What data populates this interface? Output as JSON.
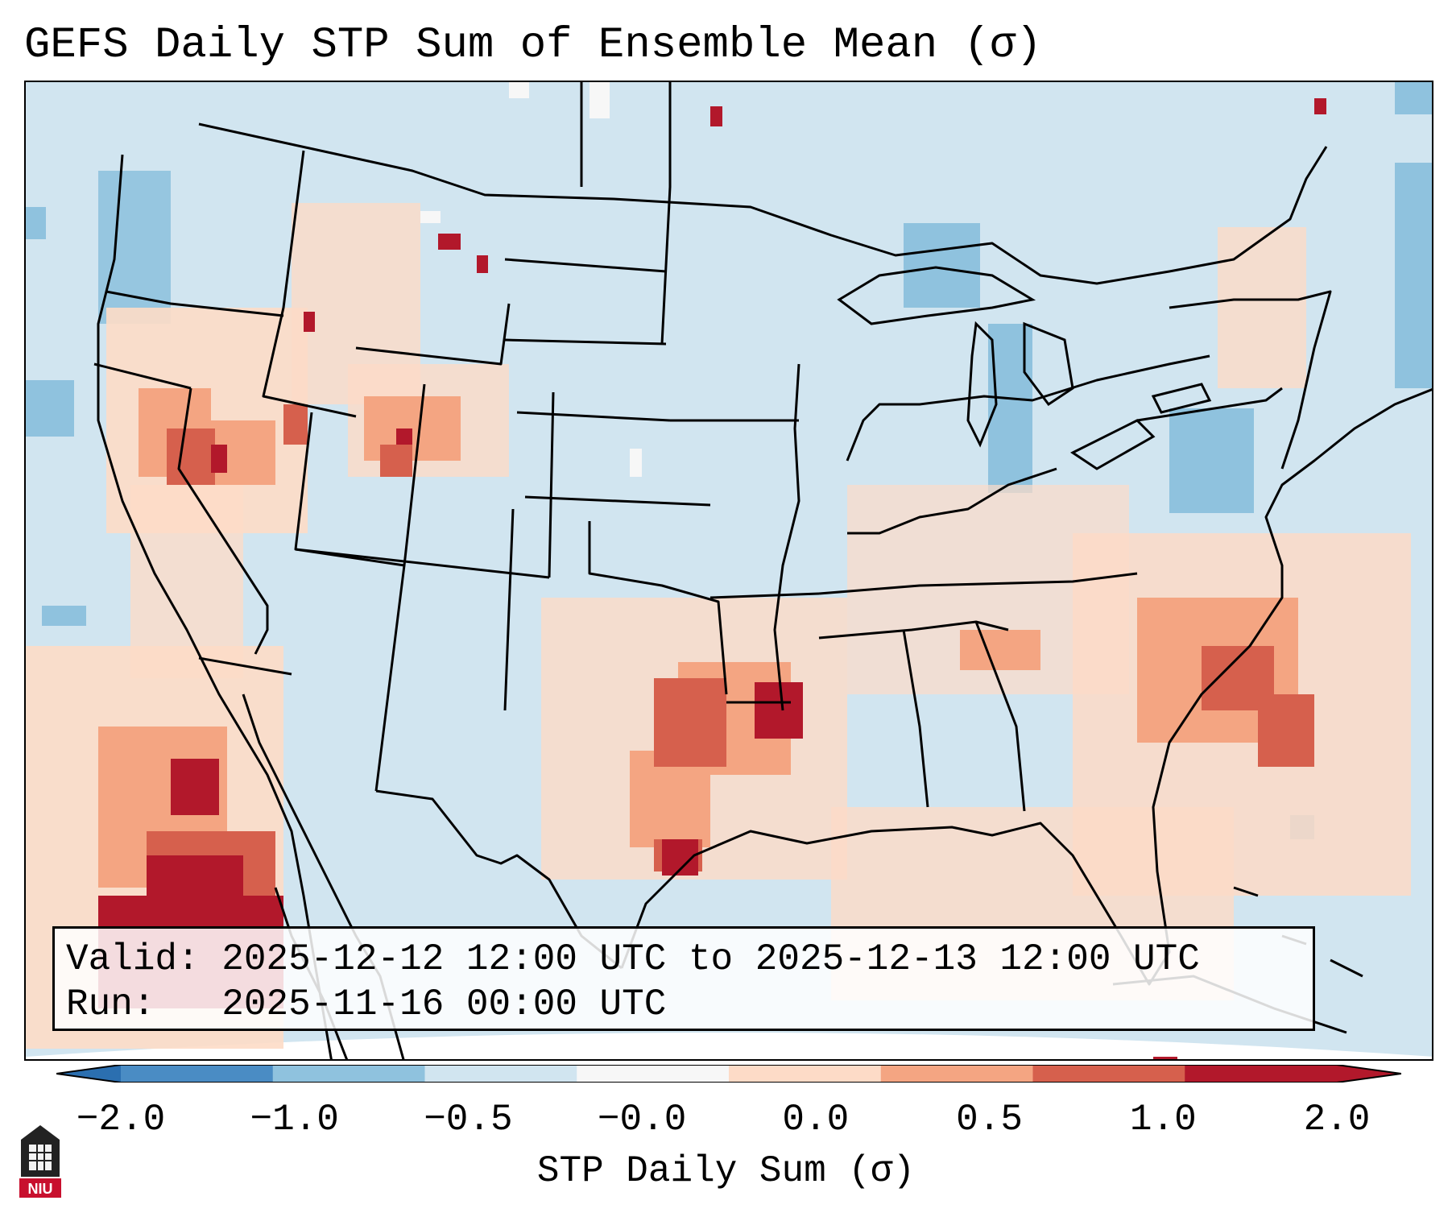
{
  "title": "GEFS Daily STP Sum of Ensemble Mean (σ)",
  "info": {
    "valid_label": "Valid:",
    "valid_value": "2025-12-12 12:00 UTC to 2025-12-13 12:00 UTC",
    "run_label": "Run:",
    "run_value": "2025-11-16 00:00 UTC"
  },
  "colorbar": {
    "label": "STP Daily Sum (σ)",
    "ticks": [
      "−2.0",
      "−1.0",
      "−0.5",
      "−0.0",
      "0.0",
      "0.5",
      "1.0",
      "2.0"
    ],
    "colors": [
      "#4a8cc4",
      "#8fc2de",
      "#d1e5f0",
      "#f7f7f7",
      "#fddbc7",
      "#f4a582",
      "#d6604d",
      "#b2182b"
    ],
    "under_color": "#2b6fb0",
    "over_color": "#b2182b"
  },
  "map": {
    "background_color": "#d1e5f0",
    "outside_color": "#ffffff"
  },
  "logo": {
    "text": "NIU",
    "color": "#c8102e"
  }
}
